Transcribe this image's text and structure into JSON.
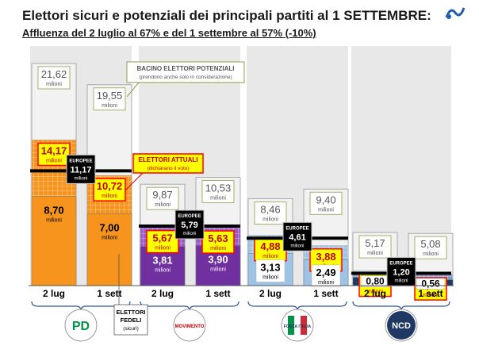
{
  "title": "Elettori sicuri e potenziali dei principali partiti al 1 SETTEMBRE:",
  "subtitle": "Affluenza del 2 luglio al 67% e del 1 settembre al 57% (-10%)",
  "colors": {
    "pd": "#f7941d",
    "m5s": "#7030a0",
    "fi": "#9dc3e6",
    "ncd": "#1f3864",
    "potential_box": "#f2f2f2",
    "current_label_bg": "#ffff00",
    "current_label_border": "#ff0000",
    "europee_box": "#000000",
    "group_band": "#e8e8e8"
  },
  "callouts": {
    "bacino_title": "BACINO ELETTORI POTENZIALI",
    "bacino_sub": "(prendono anche solo in considerazione)",
    "attuali_title": "ELETTORI ATTUALI",
    "attuali_sub": "(dichiarano il voto)",
    "fedeli_line1": "ELETTORI",
    "fedeli_line2": "FEDELI",
    "fedeli_sub": "(sicuri)"
  },
  "unit_label": "milioni",
  "europee_label": "EUROPEE",
  "chart_data": {
    "type": "bar",
    "title": "Elettori sicuri e potenziali dei principali partiti al 1 SETTEMBRE:",
    "subtitle": "Affluenza del 2 luglio al 67% e del 1 settembre al 57% (-10%)",
    "categories": [
      "2 lug",
      "1 sett",
      "2 lug",
      "1 sett",
      "2 lug",
      "1 sett",
      "2 lug",
      "1 sett"
    ],
    "parties": [
      {
        "logo_text": "PD",
        "europee": "11,17",
        "europee_value": 11.17,
        "bars": [
          {
            "category": "2 lug",
            "potential": 21.62,
            "potential_label": "21,62",
            "current": 14.17,
            "current_label": "14,17",
            "loyal": 8.7,
            "loyal_label": "8,70"
          },
          {
            "category": "1 sett",
            "potential": 19.55,
            "potential_label": "19,55",
            "current": 10.72,
            "current_label": "10,72",
            "loyal": 7.0,
            "loyal_label": "7,00"
          }
        ]
      },
      {
        "logo_text": "MOVIMENTO",
        "europee": "5,79",
        "europee_value": 5.79,
        "bars": [
          {
            "category": "2 lug",
            "potential": 9.87,
            "potential_label": "9,87",
            "current": 5.67,
            "current_label": "5,67",
            "loyal": 3.81,
            "loyal_label": "3,81"
          },
          {
            "category": "1 sett",
            "potential": 10.53,
            "potential_label": "10,53",
            "current": 5.63,
            "current_label": "5,63",
            "loyal": 3.9,
            "loyal_label": "3,90"
          }
        ]
      },
      {
        "logo_text": "FORZA ITALIA",
        "europee": "4,61",
        "europee_value": 4.61,
        "bars": [
          {
            "category": "2 lug",
            "potential": 8.46,
            "potential_label": "8,46",
            "current": 4.88,
            "current_label": "4,88",
            "loyal": 3.13,
            "loyal_label": "3,13"
          },
          {
            "category": "1 sett",
            "potential": 9.4,
            "potential_label": "9,40",
            "current": 3.88,
            "current_label": "3,88",
            "loyal": 2.49,
            "loyal_label": "2,49"
          }
        ]
      },
      {
        "logo_text": "NCD",
        "europee": "1,20",
        "europee_value": 1.2,
        "bars": [
          {
            "category": "2 lug",
            "potential": 5.17,
            "potential_label": "5,17",
            "current": 1.42,
            "current_label": "1,42",
            "loyal": 0.8,
            "loyal_label": "0,80"
          },
          {
            "category": "1 sett",
            "potential": 5.08,
            "potential_label": "5,08",
            "current": 1.07,
            "current_label": "1,07",
            "loyal": 0.56,
            "loyal_label": "0,56"
          }
        ]
      }
    ],
    "ylabel": "",
    "xlabel": "",
    "grid": false,
    "ylim": [
      0,
      22
    ]
  }
}
